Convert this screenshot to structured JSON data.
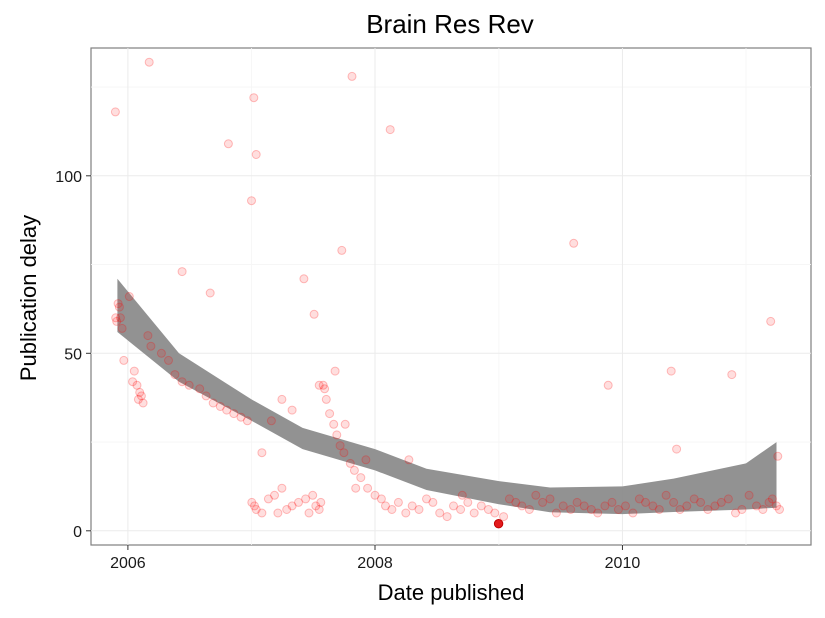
{
  "chart_data": {
    "type": "scatter",
    "title": "Brain Res Rev",
    "xlabel": "Date published",
    "ylabel": "Publication delay",
    "x_axis": {
      "type": "date",
      "range": [
        "2005-09-14",
        "2011-07-12"
      ],
      "ticks": [
        {
          "value": "2006-01-01",
          "label": "2006"
        },
        {
          "value": "2008-01-01",
          "label": "2008"
        },
        {
          "value": "2010-01-01",
          "label": "2010"
        }
      ]
    },
    "y_axis": {
      "range": [
        -4,
        136
      ],
      "ticks": [
        {
          "value": 0,
          "label": "0"
        },
        {
          "value": 50,
          "label": "50"
        },
        {
          "value": 100,
          "label": "100"
        }
      ]
    },
    "grid": true,
    "colors": {
      "points": "#ff0000",
      "highlight": "#e31a1c",
      "band": "#8c8c8c",
      "panel_border": "#7f7f7f"
    },
    "highlight_point": {
      "x": "2008-12-31",
      "y": 2
    },
    "smooth_band": {
      "x": [
        "2005-12-01",
        "2006-06-01",
        "2007-01-01",
        "2007-06-01",
        "2008-01-01",
        "2008-06-01",
        "2009-01-01",
        "2009-06-01",
        "2010-01-01",
        "2010-06-01",
        "2011-01-01",
        "2011-04-01"
      ],
      "lower": [
        56,
        42,
        31,
        23,
        17,
        11.5,
        7.5,
        5.2,
        4.7,
        5.3,
        6,
        6.5
      ],
      "upper": [
        71,
        50,
        37,
        29,
        23,
        17.5,
        14,
        12.2,
        12.5,
        14.7,
        19,
        25
      ]
    },
    "series": [
      {
        "x": [
          "2005-11-25",
          "2005-11-29",
          "2005-12-03",
          "2005-12-07",
          "2005-12-10",
          "2005-12-15",
          "2005-12-20",
          "2006-01-05",
          "2006-01-15",
          "2006-02-01",
          "2006-02-05",
          "2006-02-15",
          "2006-03-01",
          "2006-02-10",
          "2006-01-20",
          "2006-01-28",
          "2006-03-10",
          "2006-04-10",
          "2006-05-01",
          "2006-05-20",
          "2006-06-10",
          "2006-07-01",
          "2006-08-01",
          "2006-08-20",
          "2006-09-10",
          "2006-10-01",
          "2006-10-20",
          "2006-11-10",
          "2006-12-01",
          "2006-12-20",
          "2007-01-02",
          "2007-01-10",
          "2007-01-15",
          "2007-02-01",
          "2007-02-20",
          "2007-03-10",
          "2007-03-20",
          "2007-04-01",
          "2007-04-15",
          "2007-05-01",
          "2007-05-20",
          "2007-06-10",
          "2007-06-20",
          "2007-07-01",
          "2007-07-10",
          "2007-07-20",
          "2007-07-25",
          "2007-08-01",
          "2007-08-10",
          "2007-08-20",
          "2007-09-01",
          "2007-09-10",
          "2007-09-20",
          "2007-10-01",
          "2007-10-20",
          "2007-11-01",
          "2007-11-20",
          "2007-12-10",
          "2008-01-01",
          "2008-01-20",
          "2008-02-01",
          "2008-02-20",
          "2008-03-10",
          "2008-04-01",
          "2008-04-20",
          "2008-05-10",
          "2008-06-01",
          "2008-06-20",
          "2008-07-10",
          "2008-08-01",
          "2008-08-20",
          "2008-09-10",
          "2008-10-01",
          "2008-10-20",
          "2008-11-10",
          "2008-12-01",
          "2008-12-20",
          "2009-01-15",
          "2009-02-01",
          "2009-02-20",
          "2009-03-10",
          "2009-04-01",
          "2009-04-20",
          "2009-05-10",
          "2009-06-01",
          "2009-06-20",
          "2009-07-10",
          "2009-08-01",
          "2009-08-20",
          "2009-09-10",
          "2009-10-01",
          "2009-10-20",
          "2009-11-10",
          "2009-12-01",
          "2009-12-20",
          "2010-01-10",
          "2010-02-01",
          "2010-02-20",
          "2010-03-10",
          "2010-04-01",
          "2010-04-20",
          "2010-05-10",
          "2010-06-01",
          "2010-06-20",
          "2010-07-10",
          "2010-08-01",
          "2010-08-20",
          "2010-09-10",
          "2010-10-01",
          "2010-10-20",
          "2010-11-10",
          "2010-12-01",
          "2010-12-20",
          "2011-01-10",
          "2011-02-01",
          "2011-02-20",
          "2011-03-10",
          "2011-03-20",
          "2011-04-01",
          "2011-04-10",
          "2005-11-26",
          "2006-03-05",
          "2006-09-01",
          "2006-10-25",
          "2007-01-08",
          "2007-01-15",
          "2007-07-20",
          "2007-09-25",
          "2007-10-25",
          "2008-02-15",
          "2008-04-10",
          "2008-09-15",
          "2009-08-10",
          "2009-11-20",
          "2010-05-25",
          "2010-06-10",
          "2010-11-20",
          "2011-03-15",
          "2011-04-05",
          "2006-06-10",
          "2007-01-01",
          "2007-02-01",
          "2007-03-01",
          "2007-04-01",
          "2007-05-01",
          "2007-06-05",
          "2007-07-05",
          "2007-08-05",
          "2007-09-05",
          "2007-10-05",
          "2007-11-05",
          "2007-12-05"
        ],
        "y": [
          118,
          59,
          64,
          63,
          60,
          57,
          48,
          66,
          42,
          37,
          39,
          36,
          55,
          38,
          45,
          41,
          52,
          50,
          48,
          44,
          42,
          41,
          40,
          38,
          36,
          35,
          34,
          33,
          32,
          31,
          8,
          7,
          6,
          5,
          9,
          10,
          5,
          12,
          6,
          7,
          8,
          9,
          5,
          10,
          7,
          6,
          8,
          41,
          37,
          33,
          30,
          27,
          24,
          22,
          19,
          17,
          15,
          12,
          10,
          9,
          7,
          6,
          8,
          5,
          7,
          6,
          9,
          8,
          5,
          4,
          7,
          6,
          8,
          5,
          7,
          6,
          5,
          4,
          9,
          8,
          7,
          6,
          10,
          8,
          9,
          5,
          7,
          6,
          8,
          7,
          6,
          5,
          7,
          8,
          6,
          7,
          5,
          9,
          8,
          7,
          6,
          10,
          8,
          6,
          7,
          9,
          8,
          6,
          7,
          8,
          9,
          5,
          6,
          10,
          7,
          6,
          8,
          9,
          7,
          6,
          60,
          132,
          67,
          109,
          122,
          106,
          41,
          79,
          128,
          113,
          20,
          10,
          81,
          41,
          45,
          23,
          44,
          59,
          21,
          73,
          93,
          22,
          31,
          37,
          34,
          71,
          61,
          40,
          45,
          30,
          12,
          20
        ]
      }
    ]
  }
}
